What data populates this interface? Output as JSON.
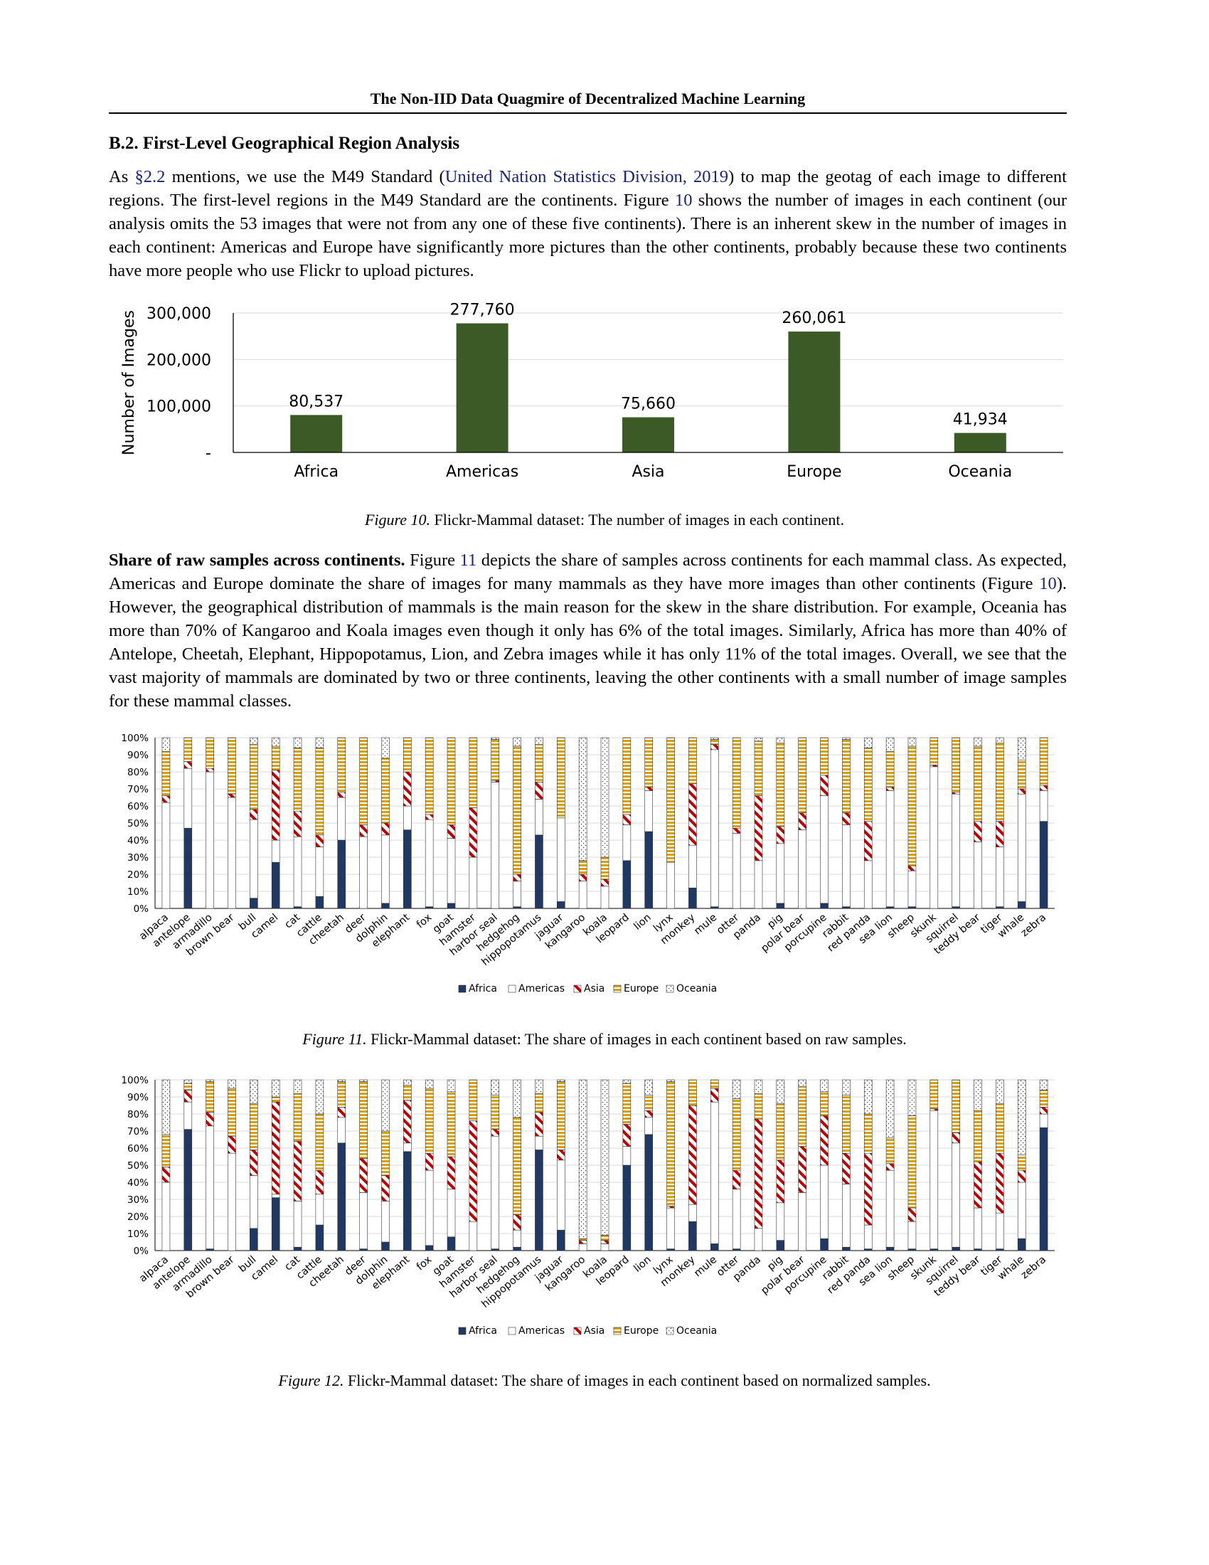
{
  "header": {
    "running_title": "The Non-IID Data Quagmire of Decentralized Machine Learning"
  },
  "section": {
    "title": "B.2. First-Level Geographical Region Analysis"
  },
  "para1": {
    "t1": "As ",
    "ref_section": "§2.2",
    "t2": " mentions, we use the M49 Standard (",
    "ref_citation": "United Nation Statistics Division, 2019",
    "t3": ") to map the geotag of each image to different regions. The first-level regions in the M49 Standard are the continents. Figure ",
    "ref_fig": "10",
    "t4": " shows the number of images in each continent (our analysis omits the 53 images that were not from any one of these five continents). There is an inherent skew in the number of images in each continent: Americas and Europe have significantly more pictures than the other continents, probably because these two continents have more people who use Flickr to upload pictures."
  },
  "para2": {
    "lead": "Share of raw samples across continents.",
    "t1": " Figure ",
    "ref_fig11": "11",
    "t2": " depicts the share of samples across continents for each mammal class. As expected, Americas and Europe dominate the share of images for many mammals as they have more images than other continents (Figure ",
    "ref_fig10": "10",
    "t3": "). However, the geographical distribution of mammals is the main reason for the skew in the share distribution. For example, Oceania has more than 70% of Kangaroo and Koala images even though it only has 6% of the total images. Similarly, Africa has more than 40% of Antelope, Cheetah, Elephant, Hippopotamus, Lion, and Zebra images while it has only 11% of the total images. Overall, we see that the vast majority of mammals are dominated by two or three continents, leaving the other continents with a small number of image samples for these mammal classes."
  },
  "captions": {
    "fig10_label": "Figure 10.",
    "fig10_text": " Flickr-Mammal dataset: The number of images in each continent.",
    "fig11_label": "Figure 11.",
    "fig11_text": " Flickr-Mammal dataset: The share of images in each continent based on raw samples.",
    "fig12_label": "Figure 12.",
    "fig12_text": " Flickr-Mammal dataset: The share of images in each continent based on normalized samples."
  },
  "colors": {
    "bar_green": "#3b5a26",
    "africa": "#1f3864",
    "asia": "#c00000",
    "europe": "#d4a017",
    "grid": "#d9d9d9",
    "axis": "#000000"
  },
  "chart_data": [
    {
      "type": "bar",
      "categories": [
        "Africa",
        "Americas",
        "Asia",
        "Europe",
        "Oceania"
      ],
      "values": [
        80537,
        277760,
        75660,
        260061,
        41934
      ],
      "data_labels": [
        "80,537",
        "277,760",
        "75,660",
        "260,061",
        "41,934"
      ],
      "ylabel": "Number of Images",
      "y_ticks": [
        "-",
        "100,000",
        "200,000",
        "300,000"
      ],
      "ylim": [
        0,
        300000
      ],
      "grid": true
    },
    {
      "type": "bar",
      "stacked": true,
      "categories": [
        "alpaca",
        "antelope",
        "armadillo",
        "brown bear",
        "bull",
        "camel",
        "cat",
        "cattle",
        "cheetah",
        "deer",
        "dolphin",
        "elephant",
        "fox",
        "goat",
        "hamster",
        "harbor seal",
        "hedgehog",
        "hippopotamus",
        "jaguar",
        "kangaroo",
        "koala",
        "leopard",
        "lion",
        "lynx",
        "monkey",
        "mule",
        "otter",
        "panda",
        "pig",
        "polar bear",
        "porcupine",
        "rabbit",
        "red panda",
        "sea lion",
        "sheep",
        "skunk",
        "squirrel",
        "teddy bear",
        "tiger",
        "whale",
        "zebra"
      ],
      "series": [
        {
          "name": "Africa",
          "values": [
            0,
            47,
            0,
            0,
            6,
            27,
            1,
            7,
            40,
            0,
            3,
            46,
            1,
            3,
            0,
            0,
            1,
            43,
            4,
            0,
            0,
            28,
            45,
            0,
            12,
            1,
            0,
            0,
            3,
            0,
            3,
            1,
            0,
            1,
            1,
            0,
            1,
            0,
            1,
            4,
            51
          ]
        },
        {
          "name": "Americas",
          "values": [
            62,
            35,
            80,
            65,
            46,
            13,
            41,
            29,
            25,
            42,
            40,
            14,
            51,
            38,
            30,
            74,
            15,
            21,
            49,
            16,
            13,
            21,
            24,
            27,
            25,
            92,
            44,
            28,
            35,
            46,
            63,
            48,
            28,
            68,
            21,
            83,
            66,
            39,
            35,
            63,
            18
          ]
        },
        {
          "name": "Asia",
          "values": [
            4,
            4,
            2,
            2,
            6,
            41,
            15,
            7,
            3,
            7,
            7,
            20,
            3,
            8,
            29,
            1,
            4,
            10,
            0,
            4,
            4,
            6,
            2,
            0,
            36,
            3,
            3,
            38,
            10,
            10,
            12,
            7,
            23,
            2,
            3,
            1,
            1,
            12,
            15,
            3,
            3
          ]
        },
        {
          "name": "Europe",
          "values": [
            26,
            14,
            18,
            33,
            38,
            14,
            37,
            51,
            32,
            51,
            38,
            20,
            45,
            51,
            41,
            24,
            75,
            22,
            47,
            8,
            13,
            45,
            29,
            73,
            27,
            3,
            53,
            32,
            49,
            44,
            22,
            43,
            43,
            21,
            70,
            16,
            32,
            44,
            46,
            17,
            28
          ]
        },
        {
          "name": "Oceania",
          "values": [
            8,
            0,
            0,
            0,
            4,
            5,
            6,
            6,
            0,
            0,
            12,
            0,
            0,
            0,
            0,
            1,
            5,
            4,
            0,
            72,
            70,
            0,
            0,
            0,
            0,
            1,
            0,
            2,
            3,
            0,
            0,
            1,
            6,
            8,
            5,
            0,
            0,
            5,
            3,
            13,
            0
          ]
        }
      ],
      "y_ticks": [
        "0%",
        "10%",
        "20%",
        "30%",
        "40%",
        "50%",
        "60%",
        "70%",
        "80%",
        "90%",
        "100%"
      ],
      "ylim": [
        0,
        100
      ],
      "legend": [
        "Africa",
        "Americas",
        "Asia",
        "Europe",
        "Oceania"
      ],
      "legend_position": "bottom"
    },
    {
      "type": "bar",
      "stacked": true,
      "categories": [
        "alpaca",
        "antelope",
        "armadillo",
        "brown bear",
        "bull",
        "camel",
        "cat",
        "cattle",
        "cheetah",
        "deer",
        "dolphin",
        "elephant",
        "fox",
        "goat",
        "hamster",
        "harbor seal",
        "hedgehog",
        "hippopotamus",
        "jaguar",
        "kangaroo",
        "koala",
        "leopard",
        "lion",
        "lynx",
        "monkey",
        "mule",
        "otter",
        "panda",
        "pig",
        "polar bear",
        "porcupine",
        "rabbit",
        "red panda",
        "sea lion",
        "sheep",
        "skunk",
        "squirrel",
        "teddy bear",
        "tiger",
        "whale",
        "zebra"
      ],
      "series": [
        {
          "name": "Africa",
          "values": [
            0,
            71,
            1,
            0,
            13,
            31,
            2,
            15,
            63,
            1,
            5,
            58,
            3,
            8,
            0,
            1,
            2,
            59,
            12,
            0,
            0,
            50,
            68,
            1,
            17,
            4,
            1,
            0,
            6,
            0,
            7,
            2,
            1,
            2,
            1,
            1,
            2,
            1,
            1,
            7,
            72
          ]
        },
        {
          "name": "Americas",
          "values": [
            40,
            16,
            72,
            57,
            31,
            2,
            27,
            18,
            15,
            33,
            24,
            5,
            44,
            28,
            17,
            66,
            10,
            8,
            41,
            4,
            4,
            11,
            10,
            24,
            10,
            83,
            35,
            13,
            22,
            34,
            43,
            37,
            14,
            45,
            16,
            81,
            61,
            24,
            21,
            33,
            8
          ]
        },
        {
          "name": "Asia",
          "values": [
            9,
            7,
            8,
            10,
            15,
            54,
            35,
            14,
            6,
            20,
            15,
            25,
            10,
            19,
            59,
            4,
            9,
            14,
            6,
            2,
            2,
            13,
            4,
            1,
            58,
            8,
            11,
            64,
            25,
            27,
            29,
            18,
            42,
            4,
            8,
            1,
            6,
            27,
            35,
            7,
            4
          ]
        },
        {
          "name": "Europe",
          "values": [
            19,
            4,
            18,
            28,
            27,
            3,
            28,
            33,
            15,
            45,
            26,
            9,
            38,
            38,
            24,
            20,
            57,
            11,
            40,
            1,
            3,
            24,
            9,
            73,
            15,
            5,
            42,
            15,
            33,
            35,
            14,
            34,
            23,
            15,
            54,
            17,
            31,
            30,
            29,
            9,
            10
          ]
        },
        {
          "name": "Oceania",
          "values": [
            32,
            2,
            1,
            5,
            14,
            10,
            8,
            20,
            1,
            1,
            30,
            3,
            5,
            7,
            0,
            9,
            22,
            8,
            1,
            93,
            91,
            2,
            9,
            1,
            0,
            0,
            11,
            8,
            14,
            4,
            7,
            9,
            20,
            34,
            21,
            0,
            0,
            18,
            14,
            44,
            6
          ]
        }
      ],
      "y_ticks": [
        "0%",
        "10%",
        "20%",
        "30%",
        "40%",
        "50%",
        "60%",
        "70%",
        "80%",
        "90%",
        "100%"
      ],
      "ylim": [
        0,
        100
      ],
      "legend": [
        "Africa",
        "Americas",
        "Asia",
        "Europe",
        "Oceania"
      ],
      "legend_position": "bottom"
    }
  ]
}
